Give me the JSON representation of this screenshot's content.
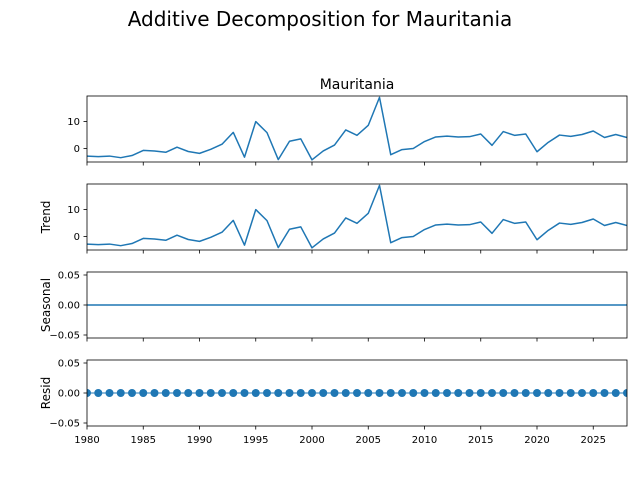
{
  "figure": {
    "suptitle": "Additive Decomposition for Mauritania",
    "line_color": "#1f77b4"
  },
  "chart_data": [
    {
      "type": "line",
      "title": "Mauritania",
      "ylabel": "",
      "xlim": [
        1980,
        2028
      ],
      "ylim": [
        -5,
        19.5
      ],
      "yticks": [
        0,
        10
      ],
      "xticks": [
        1980,
        1985,
        1990,
        1995,
        2000,
        2005,
        2010,
        2015,
        2020,
        2025
      ],
      "show_xtick_labels": false,
      "series": [
        {
          "x": [
            1980,
            1981,
            1982,
            1983,
            1984,
            1985,
            1986,
            1987,
            1988,
            1989,
            1990,
            1991,
            1992,
            1993,
            1994,
            1995,
            1996,
            1997,
            1998,
            1999,
            2000,
            2001,
            2002,
            2003,
            2004,
            2005,
            2006,
            2007,
            2008,
            2009,
            2010,
            2011,
            2012,
            2013,
            2014,
            2015,
            2016,
            2017,
            2018,
            2019,
            2020,
            2021,
            2022,
            2023,
            2024,
            2025,
            2026,
            2027,
            2028
          ],
          "y": [
            -2.8,
            -3.0,
            -2.8,
            -3.4,
            -2.6,
            -0.7,
            -0.9,
            -1.4,
            0.5,
            -1.1,
            -1.8,
            -0.3,
            1.6,
            6.0,
            -3.2,
            10.0,
            5.9,
            -4.1,
            2.7,
            3.6,
            -4.2,
            -0.9,
            1.3,
            6.9,
            4.9,
            8.6,
            19.0,
            -2.3,
            -0.4,
            0.0,
            2.6,
            4.3,
            4.6,
            4.3,
            4.4,
            5.4,
            1.2,
            6.3,
            4.9,
            5.4,
            -1.2,
            2.3,
            5.0,
            4.5,
            5.2,
            6.5,
            4.1,
            5.2,
            4.1
          ]
        }
      ]
    },
    {
      "type": "line",
      "title": "",
      "ylabel": "Trend",
      "xlim": [
        1980,
        2028
      ],
      "ylim": [
        -5,
        19.5
      ],
      "yticks": [
        0,
        10
      ],
      "xticks": [
        1980,
        1985,
        1990,
        1995,
        2000,
        2005,
        2010,
        2015,
        2020,
        2025
      ],
      "show_xtick_labels": false,
      "series": [
        {
          "x": [
            1980,
            1981,
            1982,
            1983,
            1984,
            1985,
            1986,
            1987,
            1988,
            1989,
            1990,
            1991,
            1992,
            1993,
            1994,
            1995,
            1996,
            1997,
            1998,
            1999,
            2000,
            2001,
            2002,
            2003,
            2004,
            2005,
            2006,
            2007,
            2008,
            2009,
            2010,
            2011,
            2012,
            2013,
            2014,
            2015,
            2016,
            2017,
            2018,
            2019,
            2020,
            2021,
            2022,
            2023,
            2024,
            2025,
            2026,
            2027,
            2028
          ],
          "y": [
            -2.8,
            -3.0,
            -2.8,
            -3.4,
            -2.6,
            -0.7,
            -0.9,
            -1.4,
            0.5,
            -1.1,
            -1.8,
            -0.3,
            1.6,
            6.0,
            -3.2,
            10.0,
            5.9,
            -4.1,
            2.7,
            3.6,
            -4.2,
            -0.9,
            1.3,
            6.9,
            4.9,
            8.6,
            19.0,
            -2.3,
            -0.4,
            0.0,
            2.6,
            4.3,
            4.6,
            4.3,
            4.4,
            5.4,
            1.2,
            6.3,
            4.9,
            5.4,
            -1.2,
            2.3,
            5.0,
            4.5,
            5.2,
            6.5,
            4.1,
            5.2,
            4.1
          ]
        }
      ]
    },
    {
      "type": "line",
      "title": "",
      "ylabel": "Seasonal",
      "xlim": [
        1980,
        2028
      ],
      "ylim": [
        -0.055,
        0.055
      ],
      "yticks": [
        -0.05,
        0.0,
        0.05
      ],
      "ytick_labels": [
        "−0.05",
        "0.00",
        "0.05"
      ],
      "xticks": [
        1980,
        1985,
        1990,
        1995,
        2000,
        2005,
        2010,
        2015,
        2020,
        2025
      ],
      "show_xtick_labels": false,
      "series": [
        {
          "x": [
            1980,
            2028
          ],
          "y": [
            0.0,
            0.0
          ]
        }
      ]
    },
    {
      "type": "scatter",
      "title": "",
      "ylabel": "Resid",
      "xlim": [
        1980,
        2028
      ],
      "ylim": [
        -0.055,
        0.055
      ],
      "yticks": [
        -0.05,
        0.0,
        0.05
      ],
      "ytick_labels": [
        "−0.05",
        "0.00",
        "0.05"
      ],
      "xticks": [
        1980,
        1985,
        1990,
        1995,
        2000,
        2005,
        2010,
        2015,
        2020,
        2025
      ],
      "xtick_labels": [
        "1980",
        "1985",
        "1990",
        "1995",
        "2000",
        "2005",
        "2010",
        "2015",
        "2020",
        "2025"
      ],
      "show_xtick_labels": true,
      "zero_line": true,
      "series": [
        {
          "x": [
            1980,
            1981,
            1982,
            1983,
            1984,
            1985,
            1986,
            1987,
            1988,
            1989,
            1990,
            1991,
            1992,
            1993,
            1994,
            1995,
            1996,
            1997,
            1998,
            1999,
            2000,
            2001,
            2002,
            2003,
            2004,
            2005,
            2006,
            2007,
            2008,
            2009,
            2010,
            2011,
            2012,
            2013,
            2014,
            2015,
            2016,
            2017,
            2018,
            2019,
            2020,
            2021,
            2022,
            2023,
            2024,
            2025,
            2026,
            2027,
            2028
          ],
          "y": [
            0,
            0,
            0,
            0,
            0,
            0,
            0,
            0,
            0,
            0,
            0,
            0,
            0,
            0,
            0,
            0,
            0,
            0,
            0,
            0,
            0,
            0,
            0,
            0,
            0,
            0,
            0,
            0,
            0,
            0,
            0,
            0,
            0,
            0,
            0,
            0,
            0,
            0,
            0,
            0,
            0,
            0,
            0,
            0,
            0,
            0,
            0,
            0,
            0
          ]
        }
      ]
    }
  ]
}
